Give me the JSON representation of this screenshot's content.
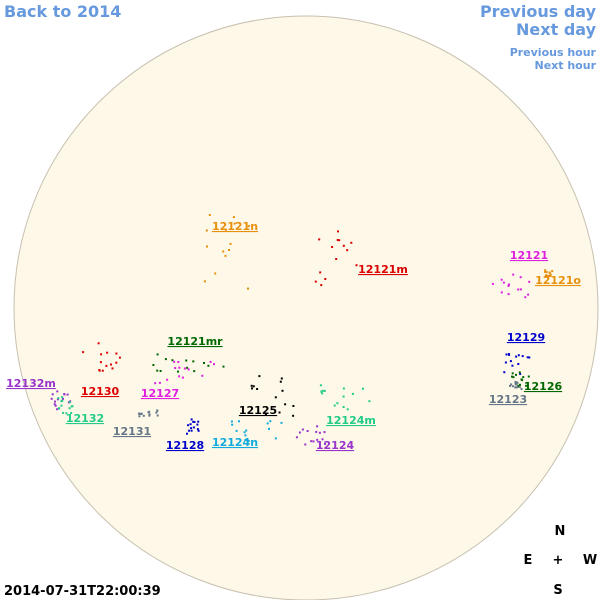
{
  "nav": {
    "back": "Back to 2014",
    "previous_day": "Previous day",
    "next_day": "Next day",
    "previous_hour": "Previous hour",
    "next_hour": "Next hour"
  },
  "timestamp": "2014-07-31T22:00:39",
  "compass": {
    "north": "N",
    "east": "E",
    "center": "+",
    "west": "W",
    "south": "S"
  },
  "regions": [
    {
      "label": "12121n",
      "color": "#e8900c"
    },
    {
      "label": "12121m",
      "color": "#dd0000"
    },
    {
      "label": "12121",
      "color": "#e020e0"
    },
    {
      "label": "12121o",
      "color": "#e8900c"
    },
    {
      "label": "12129",
      "color": "#0000cc"
    },
    {
      "label": "12121mr",
      "color": "#006600"
    },
    {
      "label": "12130",
      "color": "#dd0000"
    },
    {
      "label": "12132m",
      "color": "#9933cc"
    },
    {
      "label": "12127",
      "color": "#e020e0"
    },
    {
      "label": "12132",
      "color": "#22cc88"
    },
    {
      "label": "12126",
      "color": "#006600"
    },
    {
      "label": "12123",
      "color": "#667788"
    },
    {
      "label": "12125",
      "color": "#000000"
    },
    {
      "label": "12124m",
      "color": "#22cc88"
    },
    {
      "label": "12131",
      "color": "#667788"
    },
    {
      "label": "12128",
      "color": "#0000cc"
    },
    {
      "label": "12124n",
      "color": "#11aadd"
    },
    {
      "label": "12124",
      "color": "#9933cc"
    }
  ]
}
